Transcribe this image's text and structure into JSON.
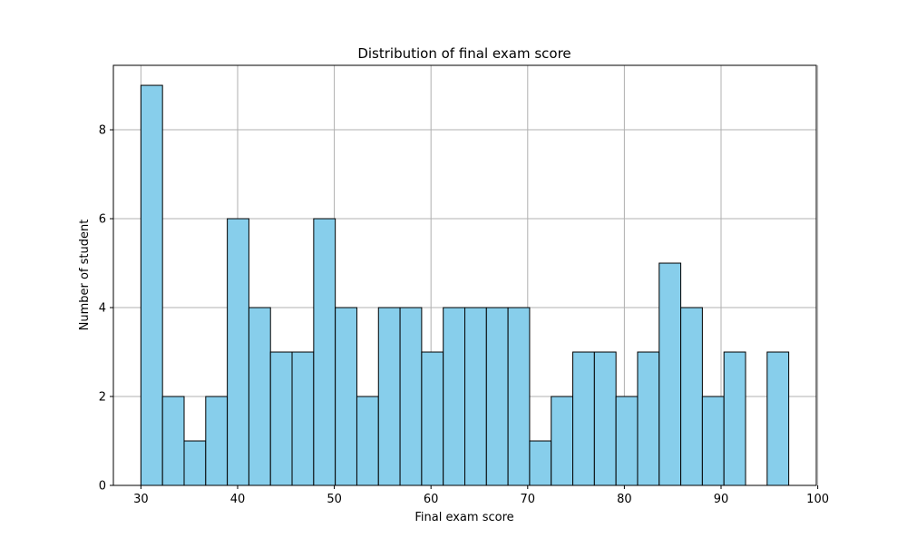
{
  "chart_data": {
    "type": "bar",
    "title": "Distribution of final exam score",
    "xlabel": "Final exam score",
    "ylabel": "Number of student",
    "xlim": [
      27.15,
      99.85
    ],
    "ylim": [
      0,
      9.45
    ],
    "xticks": [
      30,
      40,
      50,
      60,
      70,
      80,
      90,
      100
    ],
    "yticks": [
      0,
      2,
      4,
      6,
      8
    ],
    "grid": true,
    "bar_color": "#87ceeb",
    "edge_color": "#000000",
    "bins": {
      "start": 30,
      "end": 97,
      "count": 30
    },
    "values": [
      9,
      2,
      1,
      2,
      6,
      4,
      3,
      3,
      6,
      4,
      2,
      4,
      4,
      3,
      4,
      4,
      4,
      4,
      1,
      2,
      3,
      3,
      2,
      3,
      5,
      4,
      2,
      3,
      0,
      3
    ]
  }
}
